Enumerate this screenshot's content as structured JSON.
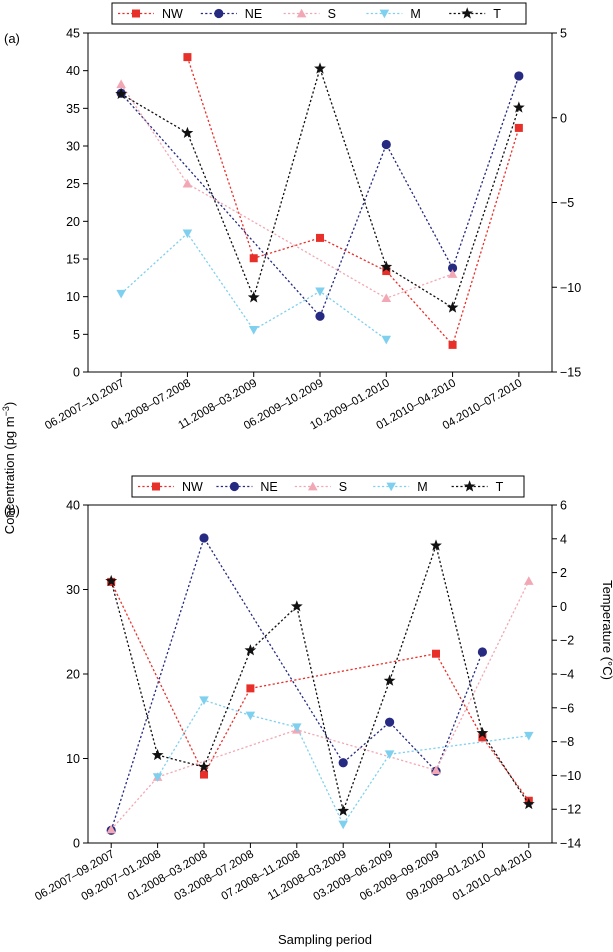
{
  "figure": {
    "y_label_left": "Concentration (pg m",
    "y_label_left_sup": "−3",
    "y_label_left_close": ")",
    "y_label_right": "Temperature (°C)",
    "x_label": "Sampling period"
  },
  "colors": {
    "NW": "#e8302a",
    "NE": "#262a80",
    "S": "#f2a8b4",
    "M": "#7fd0ee",
    "T": "#111111"
  },
  "chart_data": [
    {
      "type": "line",
      "panel_label": "(a)",
      "categories": [
        "06.2007–10.2007",
        "04.2008–07.2008",
        "11.2008–03.2009",
        "06.2009–10.2009",
        "10.2009–01.2010",
        "01.2010–04.2010",
        "04.2010–07.2010"
      ],
      "ylim": [
        0,
        45
      ],
      "yticks": [
        0,
        5,
        10,
        15,
        20,
        25,
        30,
        35,
        40,
        45
      ],
      "y2lim": [
        -15,
        5
      ],
      "y2ticks": [
        -15,
        -10,
        -5,
        0,
        5
      ],
      "series": [
        {
          "name": "NW",
          "marker": "square",
          "axis": "left",
          "values": [
            null,
            41.8,
            15.1,
            17.8,
            13.4,
            3.6,
            32.4
          ]
        },
        {
          "name": "NE",
          "marker": "circle",
          "axis": "left",
          "values": [
            37.0,
            null,
            null,
            7.4,
            30.2,
            13.8,
            39.3
          ]
        },
        {
          "name": "S",
          "marker": "triangle-up",
          "axis": "left",
          "values": [
            38.2,
            25.0,
            null,
            null,
            9.8,
            13.0,
            null
          ]
        },
        {
          "name": "M",
          "marker": "triangle-down",
          "axis": "left",
          "values": [
            10.4,
            18.4,
            5.6,
            10.7,
            4.3,
            null,
            null
          ]
        },
        {
          "name": "T",
          "marker": "star",
          "axis": "right",
          "values": [
            1.4,
            -0.9,
            -10.6,
            2.9,
            -8.8,
            -11.2,
            0.6
          ]
        }
      ]
    },
    {
      "type": "line",
      "panel_label": "(b)",
      "categories": [
        "06.2007–09.2007",
        "09.2007–01.2008",
        "01.2008–03.2008",
        "03.2008–07.2008",
        "07.2008–11.2008",
        "11.2008–03.2009",
        "03.2009–06.2009",
        "06.2009–09.2009",
        "09.2009–01.2010",
        "01.2010–04.2010"
      ],
      "ylim": [
        0,
        40
      ],
      "yticks": [
        0,
        10,
        20,
        30,
        40
      ],
      "y2lim": [
        -14,
        6
      ],
      "y2ticks": [
        -14,
        -12,
        -10,
        -8,
        -6,
        -4,
        -2,
        0,
        2,
        4,
        6
      ],
      "series": [
        {
          "name": "NW",
          "marker": "square",
          "axis": "left",
          "values": [
            30.9,
            null,
            8.1,
            18.3,
            null,
            null,
            null,
            22.4,
            12.5,
            5.0
          ]
        },
        {
          "name": "NE",
          "marker": "circle",
          "axis": "left",
          "values": [
            1.5,
            null,
            36.1,
            null,
            null,
            9.5,
            14.3,
            8.5,
            22.6,
            null
          ]
        },
        {
          "name": "S",
          "marker": "triangle-up",
          "axis": "left",
          "values": [
            1.6,
            7.8,
            null,
            null,
            13.4,
            null,
            null,
            8.6,
            null,
            31.0
          ]
        },
        {
          "name": "M",
          "marker": "triangle-down",
          "axis": "left",
          "values": [
            null,
            7.8,
            16.9,
            15.1,
            13.7,
            2.2,
            10.5,
            null,
            null,
            12.7
          ]
        },
        {
          "name": "T",
          "marker": "star",
          "axis": "right",
          "values": [
            1.5,
            -8.8,
            -9.5,
            -2.6,
            0.0,
            -12.1,
            -4.4,
            3.6,
            -7.5,
            -11.7
          ]
        }
      ]
    }
  ]
}
